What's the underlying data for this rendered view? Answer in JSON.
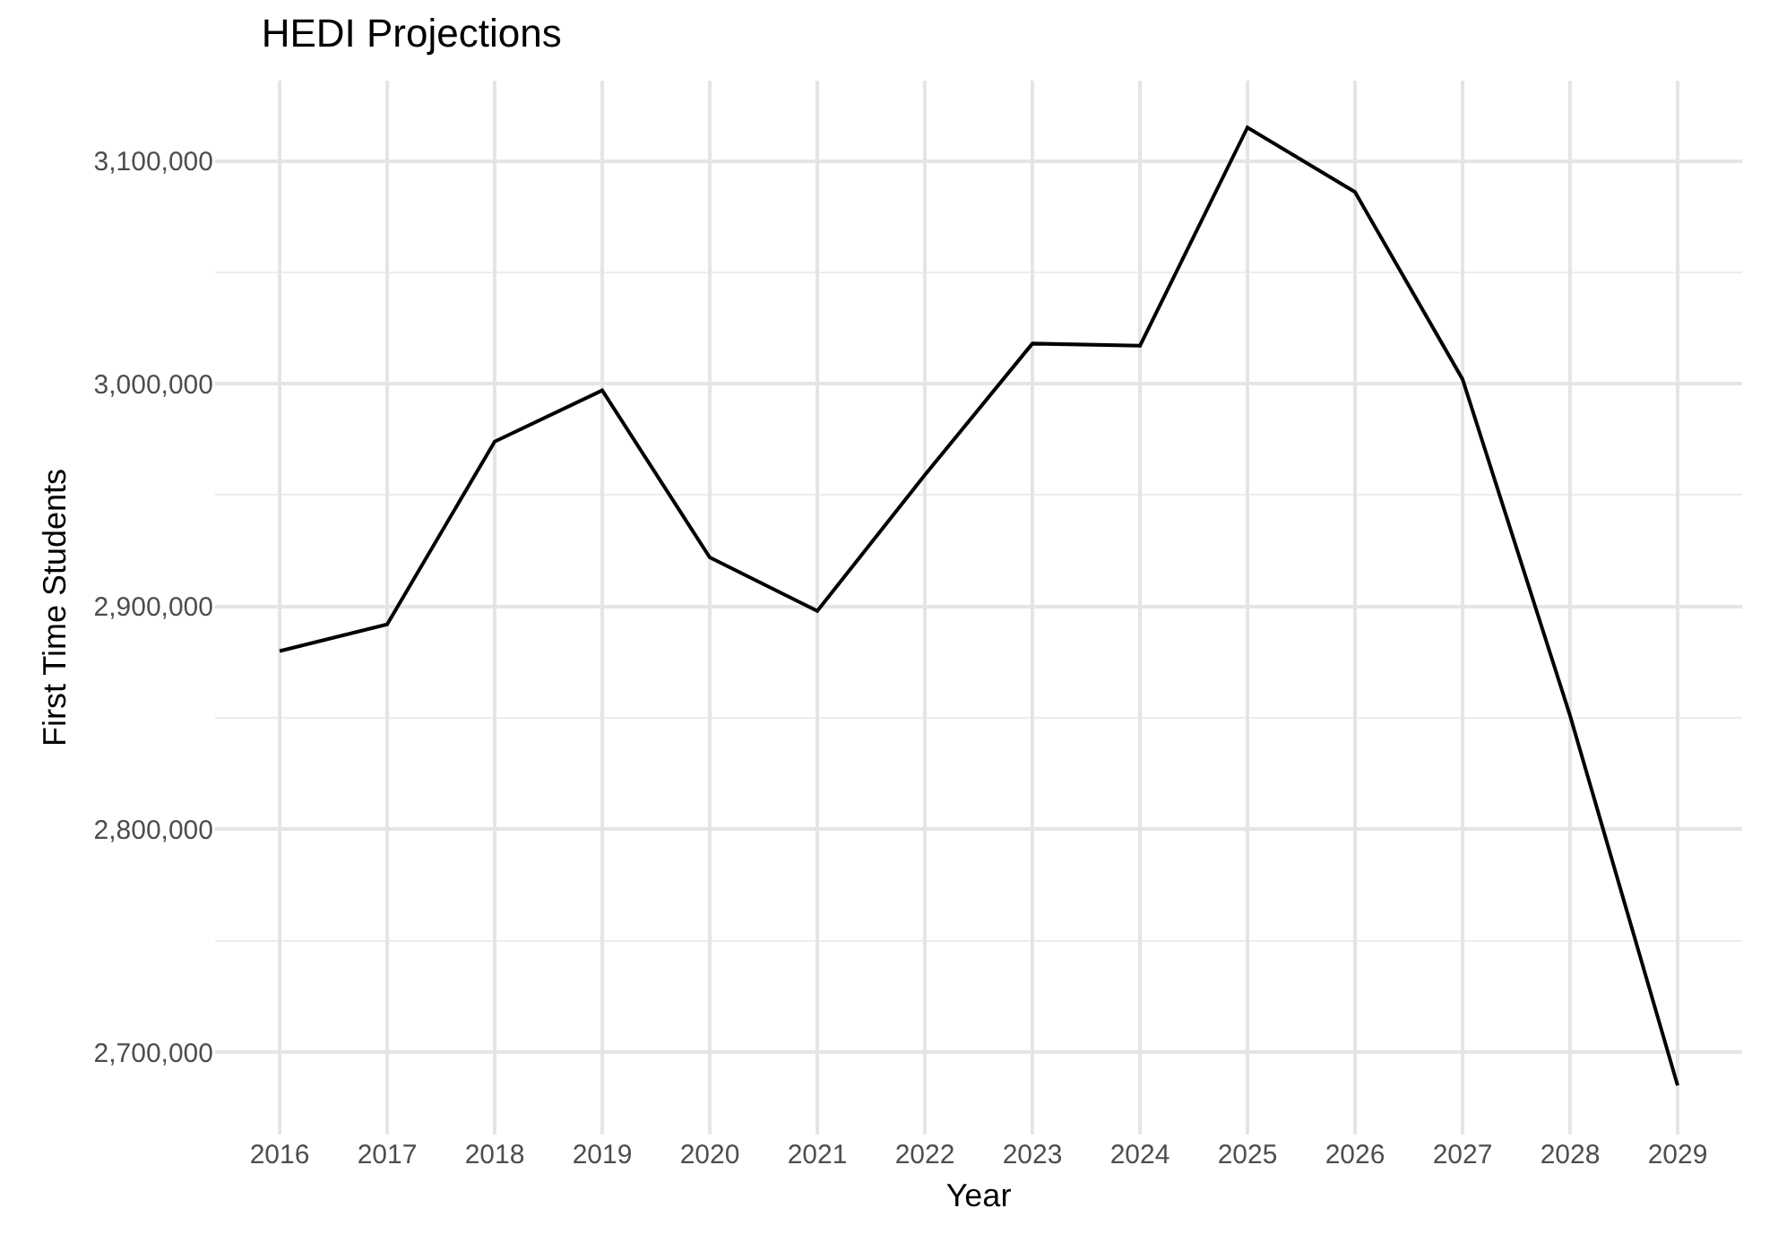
{
  "chart_data": {
    "type": "line",
    "title": "HEDI Projections",
    "xlabel": "Year",
    "ylabel": "First Time Students",
    "x": [
      2016,
      2017,
      2018,
      2019,
      2020,
      2021,
      2022,
      2023,
      2024,
      2025,
      2026,
      2027,
      2028,
      2029
    ],
    "series": [
      {
        "color": "#000000",
        "values": [
          2880000,
          2892000,
          2974000,
          2997000,
          2922000,
          2898000,
          2959000,
          3018000,
          3017000,
          3115000,
          3086000,
          3002000,
          2851000,
          2685000
        ]
      }
    ],
    "xlim": [
      2015.4,
      2029.6
    ],
    "xticks": [
      2016,
      2017,
      2018,
      2019,
      2020,
      2021,
      2022,
      2023,
      2024,
      2025,
      2026,
      2027,
      2028,
      2029
    ],
    "ylim": [
      2663000,
      3136000
    ],
    "yticks": [
      {
        "value": 2700000,
        "label": "2,700,000"
      },
      {
        "value": 2800000,
        "label": "2,800,000"
      },
      {
        "value": 2900000,
        "label": "2,900,000"
      },
      {
        "value": 3000000,
        "label": "3,000,000"
      },
      {
        "value": 3100000,
        "label": "3,100,000"
      }
    ],
    "grid": true,
    "marker": "none",
    "line_style": "solid"
  }
}
